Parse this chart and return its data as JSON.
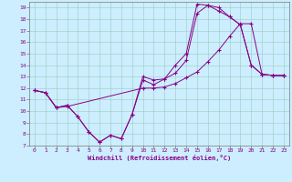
{
  "xlabel": "Windchill (Refroidissement éolien,°C)",
  "bg_color": "#cceeff",
  "line_color": "#880088",
  "xlim": [
    -0.5,
    23.5
  ],
  "ylim": [
    7,
    19.5
  ],
  "xticks": [
    0,
    1,
    2,
    3,
    4,
    5,
    6,
    7,
    8,
    9,
    10,
    11,
    12,
    13,
    14,
    15,
    16,
    17,
    18,
    19,
    20,
    21,
    22,
    23
  ],
  "yticks": [
    7,
    8,
    9,
    10,
    11,
    12,
    13,
    14,
    15,
    16,
    17,
    18,
    19
  ],
  "line1_x": [
    0,
    1,
    2,
    3,
    4,
    5,
    6,
    7,
    8,
    9,
    10,
    11,
    12,
    13,
    14,
    15,
    16,
    17,
    18,
    19,
    20,
    21,
    22,
    23
  ],
  "line1_y": [
    11.8,
    11.6,
    10.3,
    10.5,
    9.5,
    8.2,
    7.3,
    7.9,
    7.6,
    9.7,
    13.0,
    12.7,
    12.8,
    14.0,
    15.0,
    19.3,
    19.2,
    19.0,
    18.2,
    17.5,
    14.0,
    13.2,
    13.1,
    13.1
  ],
  "line2_x": [
    0,
    1,
    2,
    3,
    4,
    5,
    6,
    7,
    8,
    9,
    10,
    11,
    12,
    13,
    14,
    15,
    16,
    17,
    18,
    19,
    20,
    21,
    22,
    23
  ],
  "line2_y": [
    11.8,
    11.6,
    10.3,
    10.5,
    9.5,
    8.2,
    7.3,
    7.9,
    7.6,
    9.7,
    12.7,
    12.3,
    12.8,
    13.3,
    14.4,
    18.5,
    19.2,
    18.7,
    18.2,
    17.5,
    14.0,
    13.2,
    13.1,
    13.1
  ],
  "line3_x": [
    0,
    1,
    2,
    3,
    10,
    11,
    12,
    13,
    14,
    15,
    16,
    17,
    18,
    19,
    20,
    21,
    22,
    23
  ],
  "line3_y": [
    11.8,
    11.6,
    10.3,
    10.4,
    12.0,
    12.0,
    12.1,
    12.4,
    12.9,
    13.4,
    14.3,
    15.3,
    16.5,
    17.6,
    17.6,
    13.2,
    13.1,
    13.1
  ]
}
